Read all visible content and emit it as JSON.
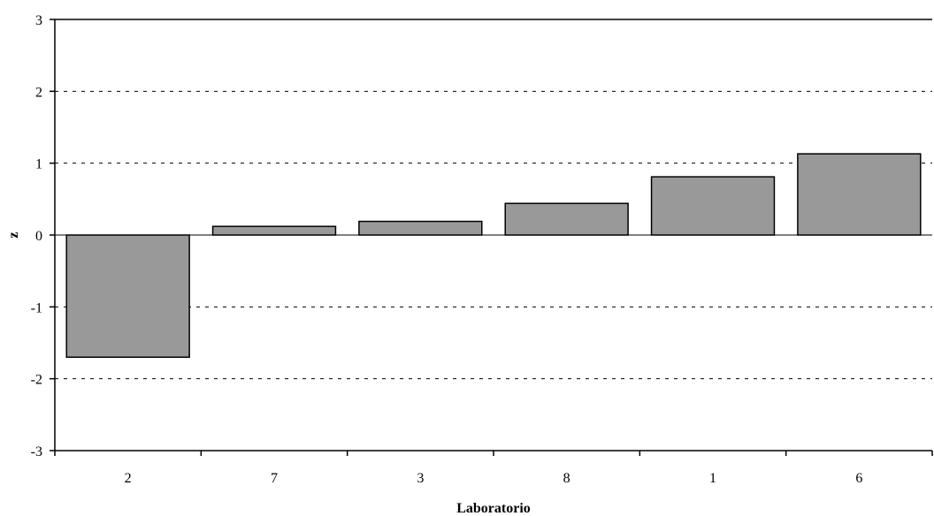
{
  "chart_data": {
    "type": "bar",
    "title": "",
    "xlabel": "Laboratorio",
    "ylabel": "z",
    "categories": [
      "2",
      "7",
      "3",
      "8",
      "1",
      "6"
    ],
    "values": [
      -1.7,
      0.12,
      0.19,
      0.44,
      0.81,
      1.13
    ],
    "ylim": [
      -3,
      3
    ],
    "yticks": [
      -3,
      -2,
      -1,
      0,
      1,
      2,
      3
    ],
    "grid": "horizontal dashed",
    "legend": "none",
    "colors": {
      "bar_fill": "#999999",
      "bar_stroke": "#000000",
      "grid": "#000000",
      "axis": "#000000"
    }
  }
}
